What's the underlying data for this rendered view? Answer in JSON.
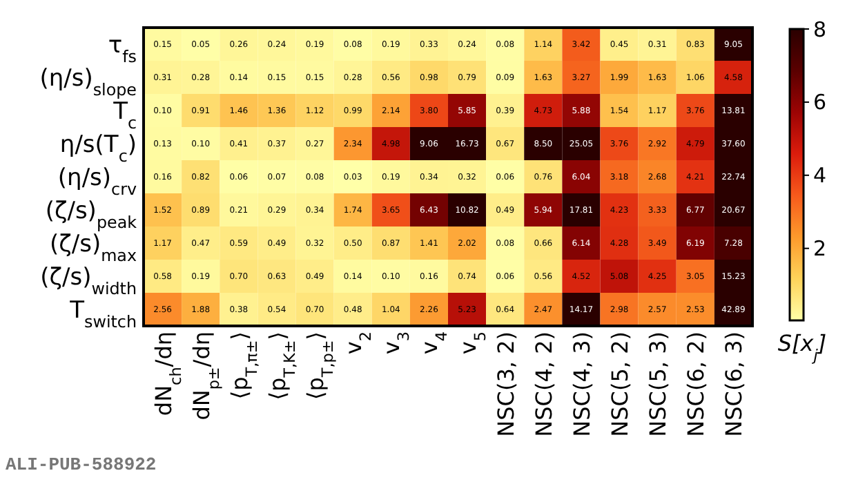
{
  "chart_data": {
    "type": "heatmap",
    "categories": [
      "dN$_{ch}$/dη",
      "dN$_{p±}$/dη",
      "⟨p$_{T,π±}$⟩",
      "⟨p$_{T,K±}$⟩",
      "⟨p$_{T,p±}$⟩",
      "v$_{2}$",
      "v$_{3}$",
      "v$_{4}$",
      "v$_{5}$",
      "NSC(3, 2)",
      "NSC(4, 2)",
      "NSC(4, 3)",
      "NSC(5, 2)",
      "NSC(5, 3)",
      "NSC(6, 2)",
      "NSC(6, 3)"
    ],
    "y_categories": [
      "τ$_{fs}$",
      "(η/s)$_{slope}$",
      "T$_{c}$",
      "η/s(T$_{c}$)",
      "(η/s)$_{crv}$",
      "(ζ/s)$_{peak}$",
      "(ζ/s)$_{max}$",
      "(ζ/s)$_{width}$",
      "T$_{switch}$"
    ],
    "cells": [
      [
        0.15,
        0.05,
        0.26,
        0.24,
        0.19,
        0.08,
        0.19,
        0.33,
        0.24,
        0.08,
        1.14,
        3.42,
        0.45,
        0.31,
        0.83,
        9.05
      ],
      [
        0.31,
        0.28,
        0.14,
        0.15,
        0.15,
        0.28,
        0.56,
        0.98,
        0.79,
        0.09,
        1.63,
        3.27,
        1.99,
        1.63,
        1.06,
        4.58
      ],
      [
        0.1,
        0.91,
        1.46,
        1.36,
        1.12,
        0.99,
        2.14,
        3.8,
        5.85,
        0.39,
        4.73,
        5.88,
        1.54,
        1.17,
        3.76,
        13.81
      ],
      [
        0.13,
        0.1,
        0.41,
        0.37,
        0.27,
        2.34,
        4.98,
        9.06,
        16.73,
        0.67,
        8.5,
        25.05,
        3.76,
        2.92,
        4.79,
        37.6
      ],
      [
        0.16,
        0.82,
        0.06,
        0.07,
        0.08,
        0.03,
        0.19,
        0.34,
        0.32,
        0.06,
        0.76,
        6.04,
        3.18,
        2.68,
        4.21,
        22.74
      ],
      [
        1.52,
        0.89,
        0.21,
        0.29,
        0.34,
        1.74,
        3.65,
        6.43,
        10.82,
        0.49,
        5.94,
        17.81,
        4.23,
        3.33,
        6.77,
        20.67
      ],
      [
        1.17,
        0.47,
        0.59,
        0.49,
        0.32,
        0.5,
        0.87,
        1.41,
        2.02,
        0.08,
        0.66,
        6.14,
        4.28,
        3.49,
        6.19,
        7.28
      ],
      [
        0.58,
        0.19,
        0.7,
        0.63,
        0.49,
        0.14,
        0.1,
        0.16,
        0.74,
        0.06,
        0.56,
        4.52,
        5.08,
        4.25,
        3.05,
        15.23
      ],
      [
        2.56,
        1.88,
        0.38,
        0.54,
        0.7,
        0.48,
        1.04,
        2.26,
        5.23,
        0.64,
        2.47,
        14.17,
        2.98,
        2.57,
        2.53,
        42.89
      ]
    ],
    "cell_labels": [
      [
        "0.15",
        "0.05",
        "0.26",
        "0.24",
        "0.19",
        "0.08",
        "0.19",
        "0.33",
        "0.24",
        "0.08",
        "1.14",
        "3.42",
        "0.45",
        "0.31",
        "0.83",
        "9.05"
      ],
      [
        "0.31",
        "0.28",
        "0.14",
        "0.15",
        "0.15",
        "0.28",
        "0.56",
        "0.98",
        "0.79",
        "0.09",
        "1.63",
        "3.27",
        "1.99",
        "1.63",
        "1.06",
        "4.58"
      ],
      [
        "0.10",
        "0.91",
        "1.46",
        "1.36",
        "1.12",
        "0.99",
        "2.14",
        "3.80",
        "5.85",
        "0.39",
        "4.73",
        "5.88",
        "1.54",
        "1.17",
        "3.76",
        "13.81"
      ],
      [
        "0.13",
        "0.10",
        "0.41",
        "0.37",
        "0.27",
        "2.34",
        "4.98",
        "9.06",
        "16.73",
        "0.67",
        "8.50",
        "25.05",
        "3.76",
        "2.92",
        "4.79",
        "37.60"
      ],
      [
        "0.16",
        "0.82",
        "0.06",
        "0.07",
        "0.08",
        "0.03",
        "0.19",
        "0.34",
        "0.32",
        "0.06",
        "0.76",
        "6.04",
        "3.18",
        "2.68",
        "4.21",
        "22.74"
      ],
      [
        "1.52",
        "0.89",
        "0.21",
        "0.29",
        "0.34",
        "1.74",
        "3.65",
        "6.43",
        "10.82",
        "0.49",
        "5.94",
        "17.81",
        "4.23",
        "3.33",
        "6.77",
        "20.67"
      ],
      [
        "1.17",
        "0.47",
        "0.59",
        "0.49",
        "0.32",
        "0.50",
        "0.87",
        "1.41",
        "2.02",
        "0.08",
        "0.66",
        "6.14",
        "4.28",
        "3.49",
        "6.19",
        "7.28"
      ],
      [
        "0.58",
        "0.19",
        "0.70",
        "0.63",
        "0.49",
        "0.14",
        "0.10",
        "0.16",
        "0.74",
        "0.06",
        "0.56",
        "4.52",
        "5.08",
        "4.25",
        "3.05",
        "15.23"
      ],
      [
        "2.56",
        "1.88",
        "0.38",
        "0.54",
        "0.70",
        "0.48",
        "1.04",
        "2.26",
        "5.23",
        "0.64",
        "2.47",
        "14.17",
        "2.98",
        "2.57",
        "2.53",
        "42.89"
      ]
    ],
    "data_labels": true,
    "clim": [
      0.03,
      8
    ],
    "cticks": [
      2,
      4,
      6,
      8
    ],
    "clabel": "S[x$_{j}$]",
    "annotations": [
      "ALI-PUB-588922"
    ]
  }
}
